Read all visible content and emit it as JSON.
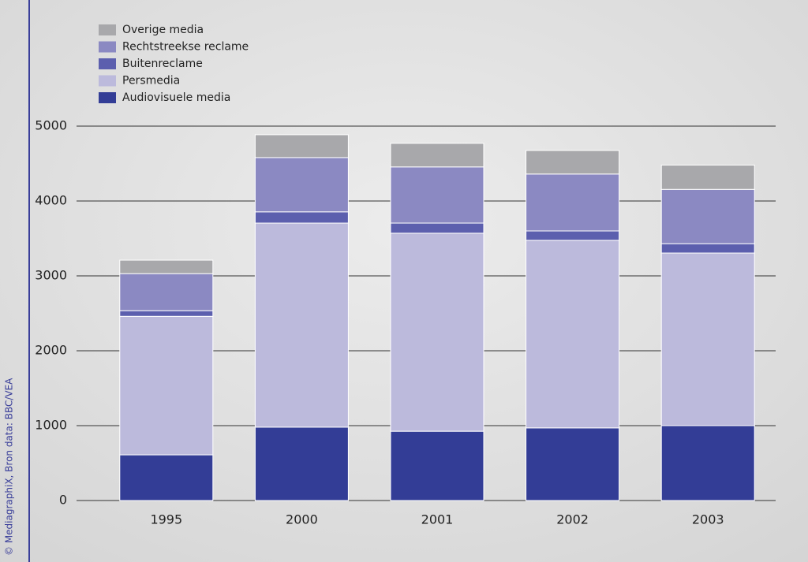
{
  "chart_data": {
    "type": "stacked_bar",
    "credit": "© MediagraphiX, Bron data: BBC/VEA",
    "categories": [
      "1995",
      "2000",
      "2001",
      "2002",
      "2003"
    ],
    "series": [
      {
        "name": "Audiovisuele media",
        "color": "#333d96",
        "values": [
          610,
          980,
          925,
          970,
          1000
        ]
      },
      {
        "name": "Persmedia",
        "color": "#bcbadc",
        "values": [
          1850,
          2725,
          2645,
          2505,
          2305
        ]
      },
      {
        "name": "Buitenreclame",
        "color": "#5c5fae",
        "values": [
          75,
          150,
          135,
          125,
          125
        ]
      },
      {
        "name": "Rechtstreekse reclame",
        "color": "#8b89c2",
        "values": [
          495,
          725,
          750,
          760,
          725
        ]
      },
      {
        "name": "Overige media",
        "color": "#a8a8ab",
        "values": [
          180,
          305,
          315,
          315,
          325
        ]
      }
    ],
    "ylim": [
      0,
      5000
    ],
    "yticks": [
      0,
      1000,
      2000,
      3000,
      4000,
      5000
    ],
    "grid": true
  }
}
